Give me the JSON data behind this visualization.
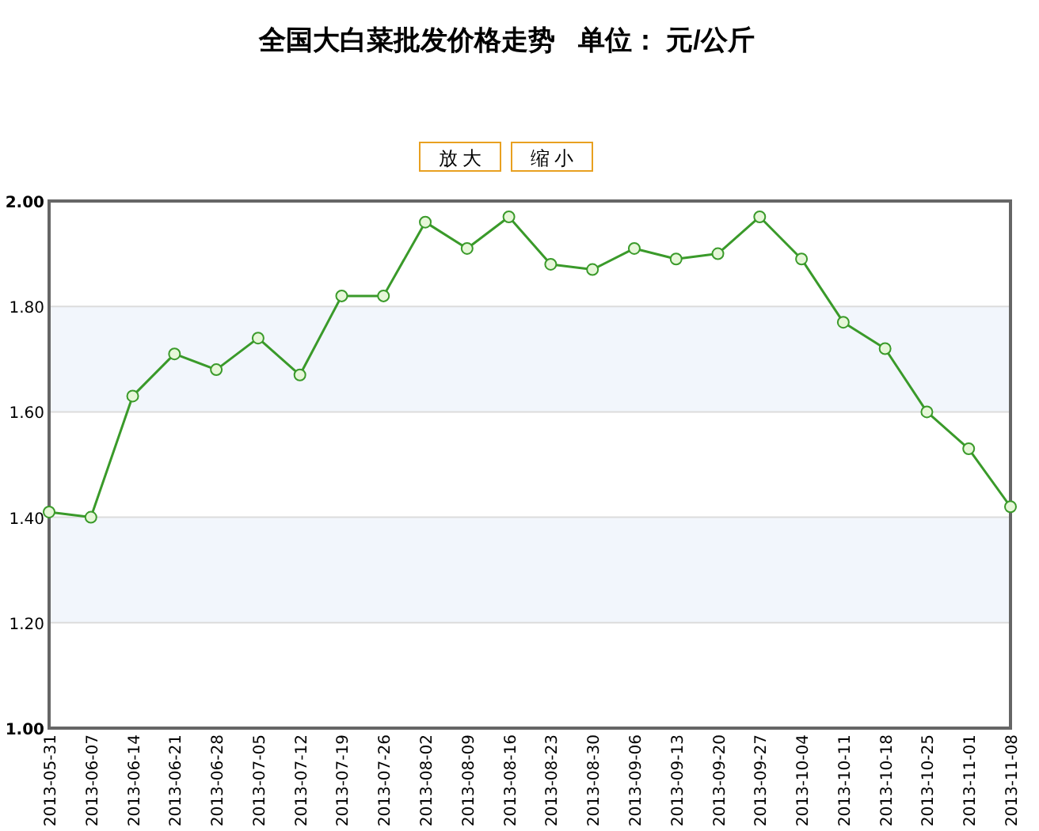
{
  "chart_data": {
    "type": "line",
    "title": "全国大白菜批发价格走势   单位： 元/公斤",
    "annotations": [
      "放 大",
      "缩 小"
    ],
    "categories": [
      "2013-05-31",
      "2013-06-07",
      "2013-06-14",
      "2013-06-21",
      "2013-06-28",
      "2013-07-05",
      "2013-07-12",
      "2013-07-19",
      "2013-07-26",
      "2013-08-02",
      "2013-08-09",
      "2013-08-16",
      "2013-08-23",
      "2013-08-30",
      "2013-09-06",
      "2013-09-13",
      "2013-09-20",
      "2013-09-27",
      "2013-10-04",
      "2013-10-11",
      "2013-10-18",
      "2013-10-25",
      "2013-11-01",
      "2013-11-08"
    ],
    "series": [
      {
        "color": "#3a9a2a",
        "values": [
          1.41,
          1.4,
          1.63,
          1.71,
          1.68,
          1.74,
          1.67,
          1.82,
          1.82,
          1.96,
          1.91,
          1.97,
          1.88,
          1.87,
          1.91,
          1.89,
          1.9,
          1.97,
          1.89,
          1.77,
          1.72,
          1.6,
          1.53,
          1.42
        ]
      }
    ],
    "ylim": [
      1.0,
      2.0
    ],
    "yticks": [
      {
        "value": 1.0,
        "label": "1.00"
      },
      {
        "value": 1.2,
        "label": "1.20"
      },
      {
        "value": 1.4,
        "label": "1.40"
      },
      {
        "value": 1.6,
        "label": "1.60"
      },
      {
        "value": 1.8,
        "label": "1.80"
      },
      {
        "value": 2.0,
        "label": "2.00"
      }
    ],
    "bands": [
      {
        "axis": "y",
        "from": 1.2,
        "to": 1.4,
        "color": "#f2f6fc"
      },
      {
        "axis": "y",
        "from": 1.6,
        "to": 1.8,
        "color": "#f2f6fc"
      }
    ],
    "grid": "y",
    "marker": "circle",
    "line_style": "solid"
  }
}
